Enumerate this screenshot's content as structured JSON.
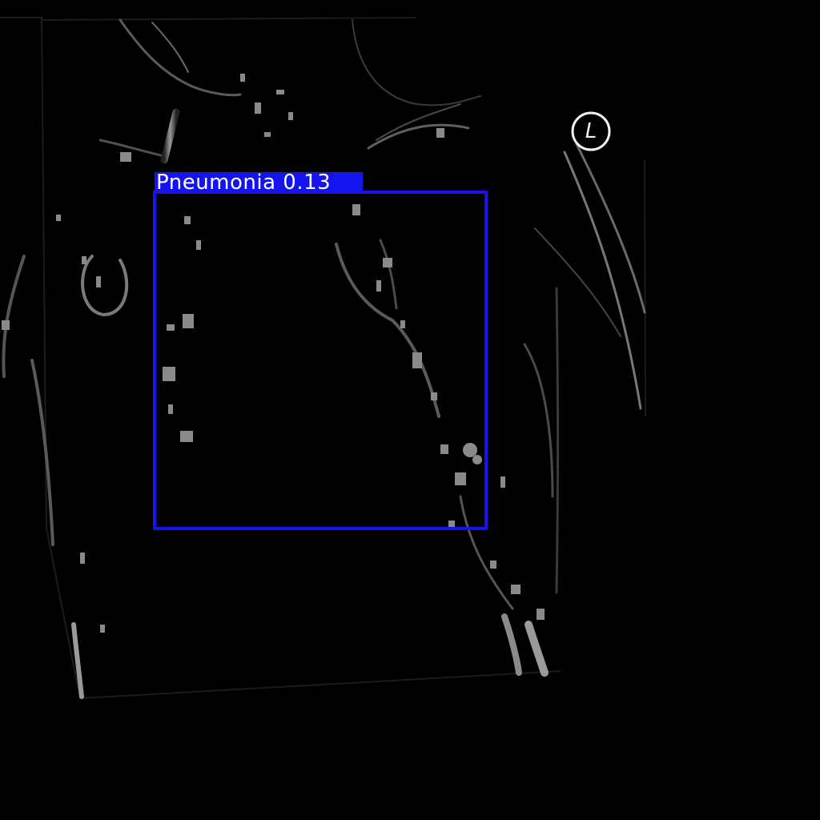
{
  "detection": {
    "label": "Pneumonia 0.13",
    "class_name": "Pneumonia",
    "confidence": 0.13,
    "color": "#1414f0"
  },
  "side_marker": {
    "text": "L"
  },
  "image": {
    "background": "#000000",
    "tissue_color": "#8a8a8a"
  }
}
